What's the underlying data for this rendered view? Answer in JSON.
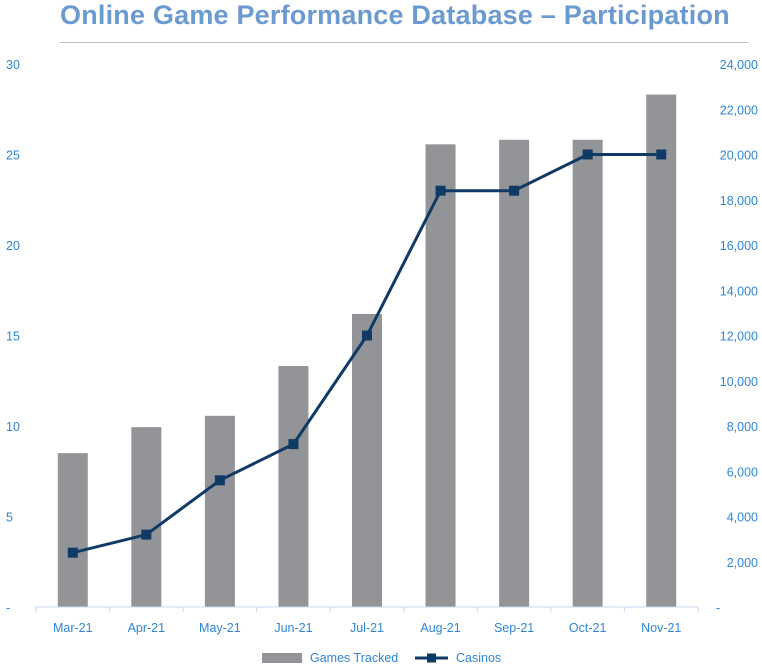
{
  "title": "Online Game Performance Database – Participation",
  "colors": {
    "title": "#6b9ad1",
    "bars": "#929497",
    "line": "#0f3a66",
    "ticks": "#2e86d6",
    "rule": "#bfbfbf"
  },
  "chart_data": {
    "type": "bar",
    "categories": [
      "Mar-21",
      "Apr-21",
      "May-21",
      "Jun-21",
      "Jul-21",
      "Aug-21",
      "Sep-21",
      "Oct-21",
      "Nov-21"
    ],
    "series": [
      {
        "name": "Games Tracked",
        "type": "bar",
        "axis": "right",
        "values": [
          6800,
          7950,
          8450,
          10650,
          12950,
          20450,
          20650,
          20650,
          22650
        ]
      },
      {
        "name": "Casinos",
        "type": "line",
        "axis": "left",
        "marker": "square",
        "values": [
          3,
          4,
          7,
          9,
          15,
          23,
          23,
          25,
          25
        ]
      }
    ],
    "left_axis": {
      "range": [
        0,
        30
      ],
      "ticks": [
        "-",
        "5",
        "10",
        "15",
        "20",
        "25",
        "30"
      ],
      "tick_values": [
        0,
        5,
        10,
        15,
        20,
        25,
        30
      ]
    },
    "right_axis": {
      "range": [
        0,
        24000
      ],
      "ticks": [
        "-",
        "2,000",
        "4,000",
        "6,000",
        "8,000",
        "10,000",
        "12,000",
        "14,000",
        "16,000",
        "18,000",
        "20,000",
        "22,000",
        "24,000"
      ],
      "tick_values": [
        0,
        2000,
        4000,
        6000,
        8000,
        10000,
        12000,
        14000,
        16000,
        18000,
        20000,
        22000,
        24000
      ]
    },
    "grid": false,
    "legend_position": "bottom"
  }
}
